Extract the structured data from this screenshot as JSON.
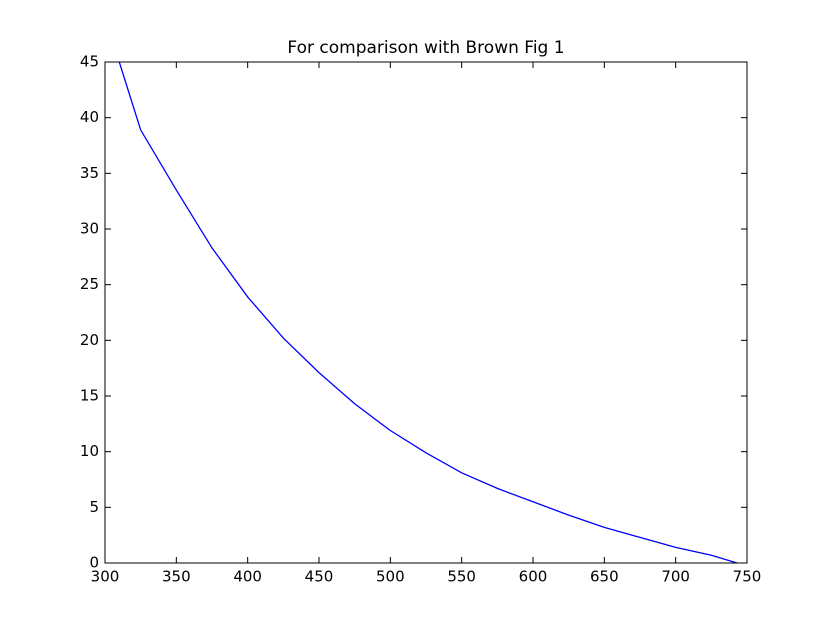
{
  "chart_data": {
    "type": "line",
    "title": "For comparison with Brown Fig 1",
    "x": [
      310,
      325,
      350,
      375,
      400,
      425,
      450,
      475,
      500,
      525,
      550,
      575,
      600,
      625,
      650,
      675,
      700,
      725,
      743
    ],
    "series": [
      {
        "color": "#0000ff",
        "values": [
          45,
          38.9,
          33.5,
          28.3,
          23.9,
          20.2,
          17.1,
          14.3,
          11.9,
          9.9,
          8.1,
          6.7,
          5.5,
          4.3,
          3.2,
          2.3,
          1.4,
          0.7,
          0
        ]
      }
    ],
    "xlim": [
      300,
      750
    ],
    "xticks": [
      300,
      350,
      400,
      450,
      500,
      550,
      600,
      650,
      700,
      750
    ],
    "ylim": [
      0,
      45
    ],
    "yticks": [
      0,
      5,
      10,
      15,
      20,
      25,
      30,
      35,
      40,
      45
    ],
    "grid": false
  }
}
